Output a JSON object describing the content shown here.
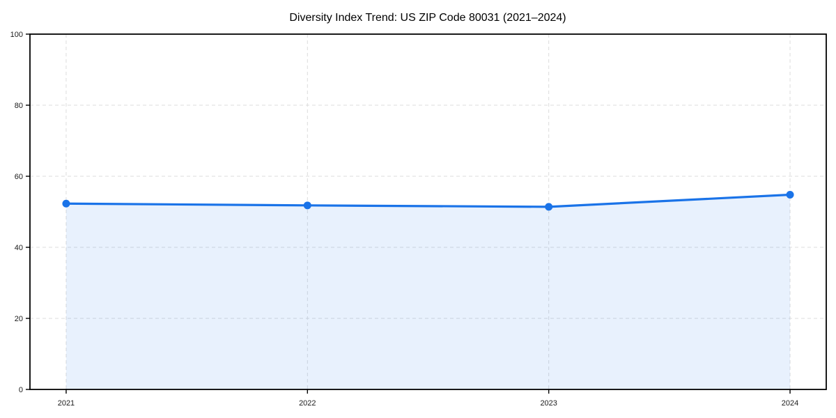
{
  "chart_data": {
    "type": "area",
    "title": "Diversity Index Trend: US ZIP Code 80031 (2021–2024)",
    "categories": [
      "2021",
      "2022",
      "2023",
      "2024"
    ],
    "values": [
      52.3,
      51.8,
      51.4,
      54.8
    ],
    "xlabel": "",
    "ylabel": "",
    "ylim": [
      0,
      100
    ],
    "yticks": [
      0,
      20,
      40,
      60,
      80,
      100
    ],
    "grid": true,
    "grid_line_style": "dashed",
    "legend_position": "none",
    "colors": {
      "line": "#1a73e8",
      "marker": "#1a73e8",
      "fill": "#1a73e8",
      "fill_opacity": 0.1,
      "grid": "#dcdcdc",
      "axis": "#000000",
      "text": "#1a1a1a",
      "background": "#ffffff"
    }
  }
}
